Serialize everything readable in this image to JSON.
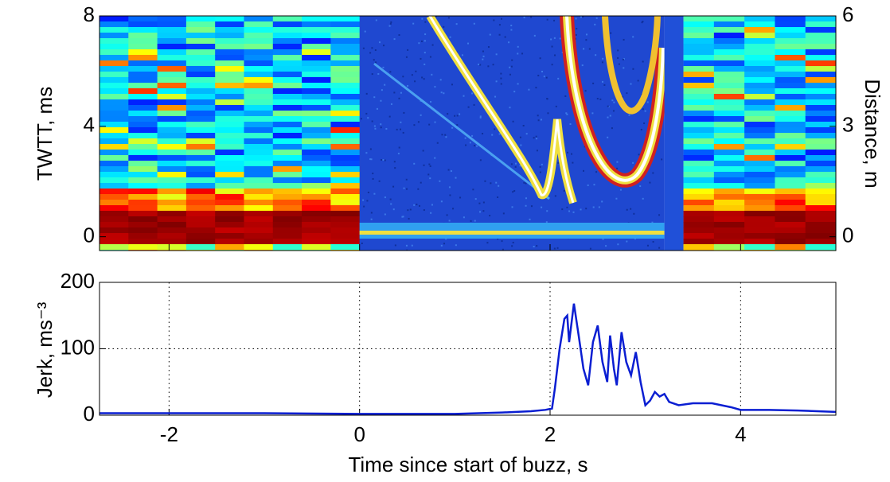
{
  "chart_data": [
    {
      "type": "heatmap",
      "ylabel": "TWTT, ms",
      "y2label": "Distance, m",
      "xlim": [
        -2.73,
        5
      ],
      "xticks": [
        -2,
        0,
        2,
        4
      ],
      "ylim": [
        -0.5,
        8
      ],
      "yticks": [
        0,
        4,
        8
      ],
      "y2lim": [
        -0.375,
        6
      ],
      "y2ticks": [
        0,
        3,
        6
      ]
    },
    {
      "type": "line",
      "xlabel": "Time since start of buzz, s",
      "ylabel": "Jerk, ms⁻³",
      "xlim": [
        -2.73,
        5
      ],
      "xticks": [
        -2,
        0,
        2,
        4
      ],
      "ylim": [
        0,
        200
      ],
      "yticks": [
        0,
        100,
        200
      ],
      "grid": true,
      "x": [
        -2.73,
        -2,
        -1,
        0,
        1,
        1.5,
        1.8,
        1.95,
        2.02,
        2.05,
        2.1,
        2.15,
        2.18,
        2.2,
        2.25,
        2.3,
        2.35,
        2.4,
        2.45,
        2.5,
        2.55,
        2.6,
        2.63,
        2.67,
        2.7,
        2.75,
        2.8,
        2.85,
        2.9,
        2.95,
        3.0,
        3.05,
        3.1,
        3.15,
        3.2,
        3.25,
        3.35,
        3.5,
        3.7,
        3.9,
        4.0,
        4.3,
        4.6,
        5.0
      ],
      "series": [
        {
          "color": "#0a1ed2",
          "values": [
            3,
            3,
            3,
            2,
            2,
            4,
            6,
            8,
            10,
            40,
            100,
            145,
            150,
            110,
            168,
            120,
            70,
            45,
            110,
            135,
            80,
            50,
            120,
            70,
            45,
            125,
            80,
            60,
            95,
            50,
            15,
            22,
            35,
            28,
            32,
            20,
            15,
            18,
            18,
            12,
            8,
            8,
            7,
            5
          ]
        }
      ]
    }
  ]
}
